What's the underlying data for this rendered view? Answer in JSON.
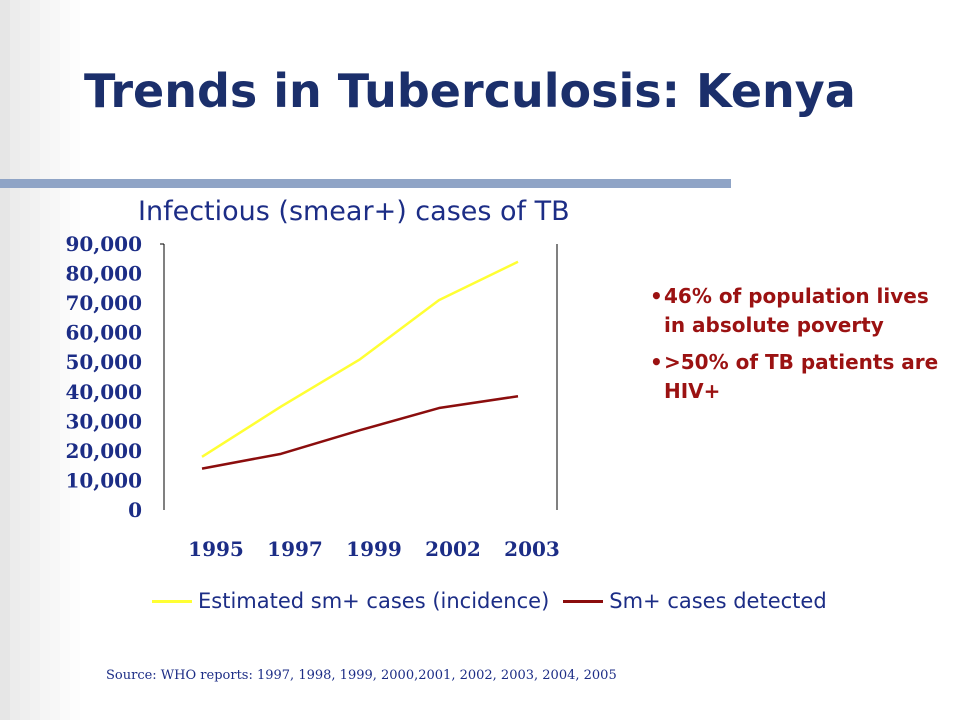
{
  "slide": {
    "title": "Trends in Tuberculosis: Kenya",
    "bullets": [
      "46% of population lives in absolute poverty",
      ">50% of TB patients are HIV+"
    ],
    "source": "Source: WHO reports: 1997, 1998, 1999, 2000,2001, 2002, 2003, 2004, 2005"
  },
  "colors": {
    "title": "#1b2f6b",
    "chart_text": "#1c2d86",
    "bullet_text": "#9b1212",
    "rule": "#8fa4c6"
  },
  "chart_data": {
    "type": "line",
    "title": "Infectious (smear+) cases of TB",
    "xlabel": "",
    "ylabel": "",
    "categories": [
      "1995",
      "1997",
      "1999",
      "2002",
      "2003"
    ],
    "y_ticks": [
      "0",
      "10,000",
      "20,000",
      "30,000",
      "40,000",
      "50,000",
      "60,000",
      "70,000",
      "80,000",
      "90,000"
    ],
    "ylim": [
      0,
      90000
    ],
    "grid": false,
    "legend_position": "bottom",
    "series": [
      {
        "name": "Estimated sm+ cases (incidence)",
        "color": "#ffff33",
        "values": [
          18000,
          35000,
          51000,
          71000,
          84000
        ]
      },
      {
        "name": "Sm+ cases detected",
        "color": "#8b0d0d",
        "values": [
          14000,
          19000,
          27000,
          34500,
          38500
        ]
      }
    ]
  }
}
